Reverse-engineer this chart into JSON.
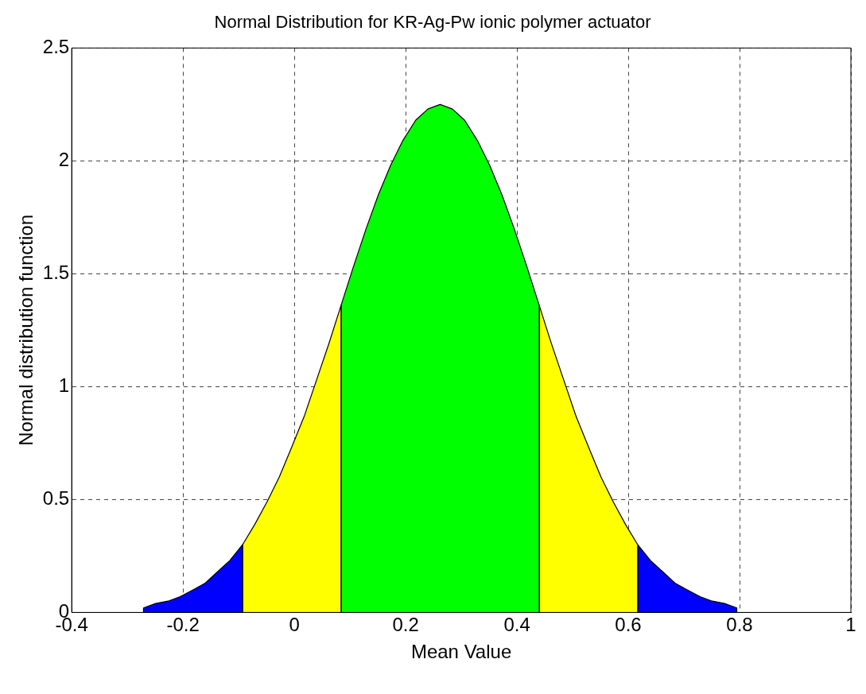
{
  "chart_data": {
    "type": "area",
    "title": "Normal Distribution for KR-Ag-Pw ionic polymer actuator",
    "xlabel": "Mean Value",
    "ylabel": "Normal distribution function",
    "xlim": [
      -0.4,
      1
    ],
    "ylim": [
      0,
      2.5
    ],
    "xticks": [
      -0.4,
      -0.2,
      0,
      0.2,
      0.4,
      0.6,
      0.8,
      1
    ],
    "yticks": [
      0,
      0.5,
      1,
      1.5,
      2,
      2.5
    ],
    "grid": true,
    "series": [
      {
        "color": "#0000ff",
        "x": [
          -0.271,
          -0.271,
          -0.249,
          -0.227,
          -0.205,
          -0.182,
          -0.16,
          -0.138,
          -0.116,
          -0.093,
          -0.093
        ],
        "values": [
          0,
          0.02,
          0.04,
          0.05,
          0.07,
          0.1,
          0.13,
          0.18,
          0.23,
          0.3,
          0
        ]
      },
      {
        "color": "#ffff00",
        "x": [
          -0.093,
          -0.093,
          -0.071,
          -0.049,
          -0.027,
          -0.005,
          0.018,
          0.04,
          0.062,
          0.084,
          0.084
        ],
        "values": [
          0,
          0.3,
          0.39,
          0.49,
          0.6,
          0.73,
          0.87,
          1.03,
          1.19,
          1.36,
          0
        ]
      },
      {
        "color": "#00ff00",
        "x": [
          0.084,
          0.084,
          0.106,
          0.129,
          0.151,
          0.173,
          0.195,
          0.218,
          0.24,
          0.262,
          0.284,
          0.306,
          0.329,
          0.351,
          0.373,
          0.395,
          0.418,
          0.44,
          0.44
        ],
        "values": [
          0,
          1.36,
          1.53,
          1.7,
          1.85,
          1.98,
          2.09,
          2.18,
          2.23,
          2.25,
          2.23,
          2.18,
          2.09,
          1.98,
          1.85,
          1.7,
          1.53,
          1.36,
          0
        ]
      },
      {
        "color": "#ffff00",
        "x": [
          0.44,
          0.44,
          0.462,
          0.484,
          0.506,
          0.529,
          0.551,
          0.573,
          0.595,
          0.617,
          0.617
        ],
        "values": [
          0,
          1.36,
          1.19,
          1.03,
          0.87,
          0.73,
          0.6,
          0.49,
          0.39,
          0.3,
          0
        ]
      },
      {
        "color": "#0000ff",
        "x": [
          0.617,
          0.617,
          0.64,
          0.662,
          0.684,
          0.706,
          0.729,
          0.751,
          0.773,
          0.795,
          0.795
        ],
        "values": [
          0,
          0.3,
          0.23,
          0.18,
          0.13,
          0.1,
          0.07,
          0.05,
          0.04,
          0.02,
          0
        ]
      }
    ]
  }
}
